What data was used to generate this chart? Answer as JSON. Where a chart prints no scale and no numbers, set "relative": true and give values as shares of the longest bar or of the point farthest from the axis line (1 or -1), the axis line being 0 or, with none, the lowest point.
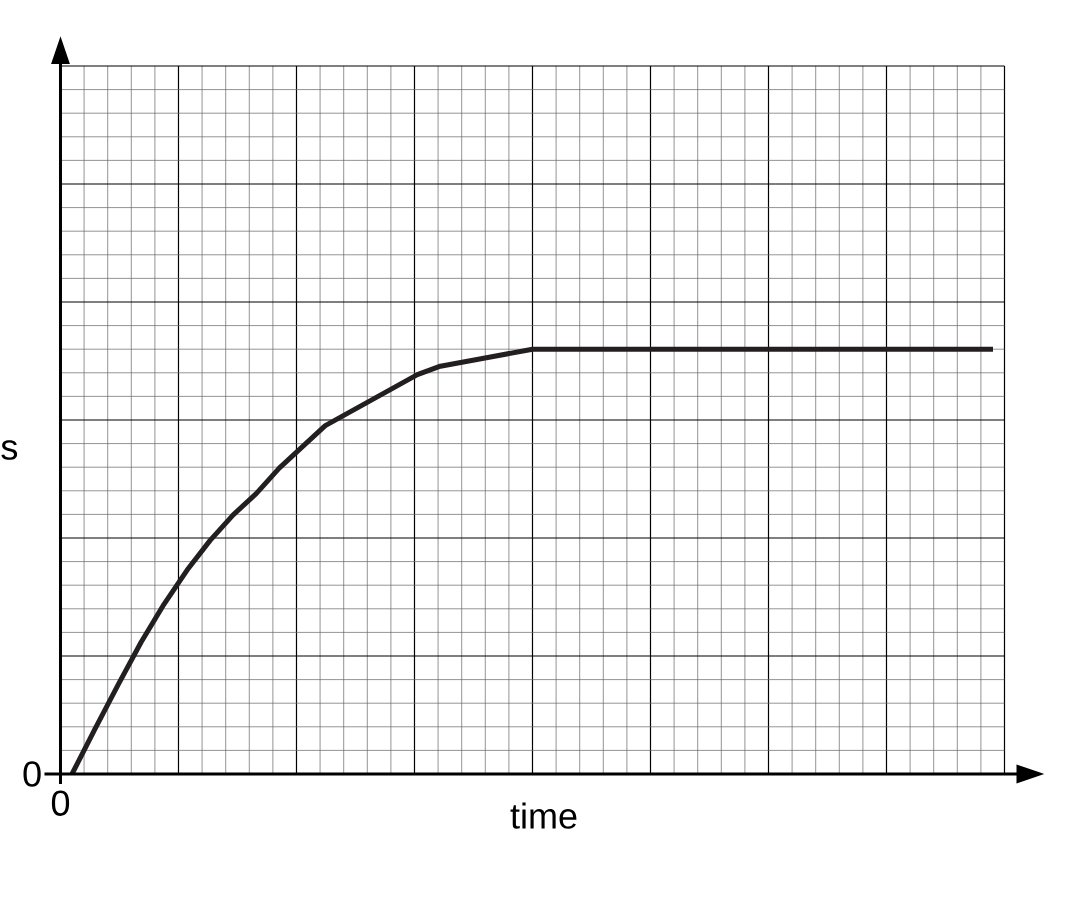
{
  "chart_data": {
    "type": "line",
    "relative": true,
    "grid": true,
    "categories": [
      null,
      null,
      null,
      null,
      null,
      null,
      null,
      null,
      null,
      null,
      null,
      null,
      null,
      null,
      null,
      null,
      null,
      null,
      null,
      null,
      null,
      null,
      null,
      null,
      null,
      null,
      null,
      null,
      null,
      null,
      null,
      null,
      null,
      null,
      null,
      null,
      null,
      null,
      null,
      null,
      null
    ],
    "series": [
      {
        "color": "#231f20",
        "values": [
          0,
          0.106,
          0.21,
          0.31,
          0.4,
          0.48,
          0.55,
          0.61,
          0.66,
          0.72,
          0.77,
          0.82,
          0.85,
          0.88,
          0.91,
          0.94,
          0.96,
          0.97,
          0.98,
          0.99,
          1,
          1,
          1,
          1,
          1,
          1,
          1,
          1,
          1,
          1,
          1,
          1,
          1,
          1,
          1,
          1,
          1,
          1,
          1,
          1,
          1
        ]
      }
    ],
    "annotations": [
      "0",
      "0",
      "s",
      "time"
    ]
  }
}
